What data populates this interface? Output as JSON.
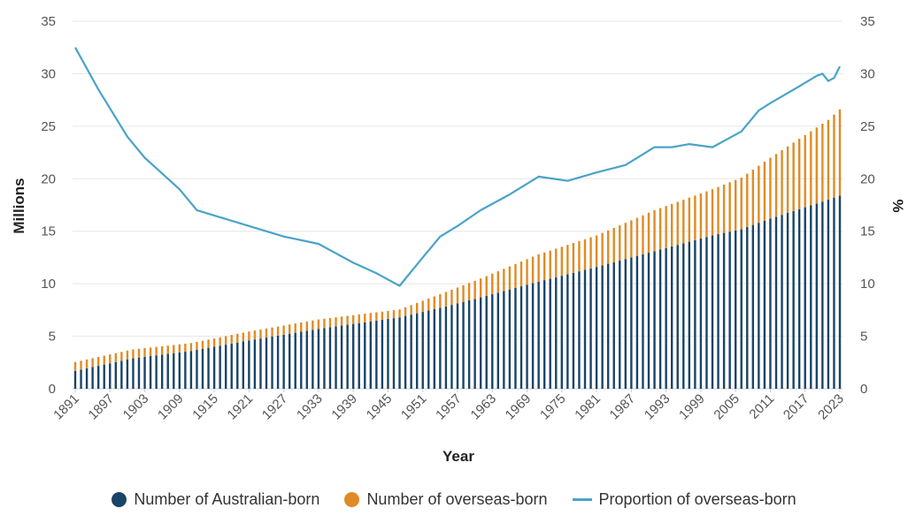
{
  "colors": {
    "australian": "#1a4468",
    "overseas": "#e08b25",
    "proportion": "#4aa3c8",
    "grid": "#e6e6e6"
  },
  "legend": {
    "australian_label": "Number of Australian-born",
    "overseas_label": "Number of overseas-born",
    "proportion_label": "Proportion of overseas-born"
  },
  "chart_data": {
    "type": "bar",
    "stacked": true,
    "xlabel": "Year",
    "ylabel_left": "Millions",
    "ylabel_right": "%",
    "ylim_left": [
      0,
      35
    ],
    "ylim_right": [
      0,
      35
    ],
    "yticks": [
      "0",
      "5",
      "10",
      "15",
      "20",
      "25",
      "30",
      "35"
    ],
    "x_tick_labels": [
      "1891",
      "1897",
      "1903",
      "1909",
      "1915",
      "1921",
      "1927",
      "1933",
      "1939",
      "1945",
      "1951",
      "1957",
      "1963",
      "1969",
      "1975",
      "1981",
      "1987",
      "1993",
      "1999",
      "2005",
      "2011",
      "2017",
      "2023"
    ],
    "grid": true,
    "legend_position": "bottom",
    "year_range": [
      1891,
      2023
    ],
    "series": [
      {
        "name": "Number of Australian-born",
        "kind": "bar",
        "axis": "left",
        "points": [
          [
            1891,
            1.7
          ],
          [
            1901,
            2.9
          ],
          [
            1911,
            3.6
          ],
          [
            1921,
            4.6
          ],
          [
            1933,
            5.7
          ],
          [
            1947,
            6.8
          ],
          [
            1954,
            7.7
          ],
          [
            1961,
            8.7
          ],
          [
            1971,
            10.2
          ],
          [
            1981,
            11.6
          ],
          [
            1991,
            13.1
          ],
          [
            2001,
            14.6
          ],
          [
            2006,
            15.2
          ],
          [
            2011,
            16.2
          ],
          [
            2016,
            17.1
          ],
          [
            2021,
            18.0
          ],
          [
            2023,
            18.4
          ]
        ]
      },
      {
        "name": "Number of overseas-born",
        "kind": "bar",
        "axis": "left",
        "points": [
          [
            1891,
            0.85
          ],
          [
            1901,
            0.85
          ],
          [
            1911,
            0.75
          ],
          [
            1921,
            0.85
          ],
          [
            1933,
            0.9
          ],
          [
            1947,
            0.75
          ],
          [
            1954,
            1.3
          ],
          [
            1961,
            1.8
          ],
          [
            1971,
            2.6
          ],
          [
            1981,
            3.0
          ],
          [
            1991,
            3.9
          ],
          [
            2001,
            4.4
          ],
          [
            2006,
            4.9
          ],
          [
            2011,
            5.8
          ],
          [
            2016,
            6.7
          ],
          [
            2021,
            7.6
          ],
          [
            2023,
            8.2
          ]
        ]
      },
      {
        "name": "Proportion of overseas-born",
        "kind": "line",
        "axis": "right",
        "points": [
          [
            1891,
            32.5
          ],
          [
            1895,
            28.5
          ],
          [
            1900,
            24.0
          ],
          [
            1903,
            22.0
          ],
          [
            1906,
            20.5
          ],
          [
            1909,
            19.0
          ],
          [
            1912,
            17.0
          ],
          [
            1915,
            16.5
          ],
          [
            1921,
            15.5
          ],
          [
            1927,
            14.5
          ],
          [
            1933,
            13.8
          ],
          [
            1939,
            12.0
          ],
          [
            1943,
            11.0
          ],
          [
            1947,
            9.8
          ],
          [
            1951,
            12.5
          ],
          [
            1954,
            14.5
          ],
          [
            1957,
            15.5
          ],
          [
            1961,
            17.0
          ],
          [
            1966,
            18.5
          ],
          [
            1971,
            20.2
          ],
          [
            1976,
            19.8
          ],
          [
            1981,
            20.6
          ],
          [
            1986,
            21.3
          ],
          [
            1991,
            23.0
          ],
          [
            1994,
            23.0
          ],
          [
            1997,
            23.3
          ],
          [
            2001,
            23.0
          ],
          [
            2006,
            24.5
          ],
          [
            2009,
            26.5
          ],
          [
            2011,
            27.2
          ],
          [
            2016,
            28.8
          ],
          [
            2019,
            29.8
          ],
          [
            2020,
            30.0
          ],
          [
            2021,
            29.3
          ],
          [
            2022,
            29.6
          ],
          [
            2023,
            30.7
          ]
        ]
      }
    ]
  }
}
